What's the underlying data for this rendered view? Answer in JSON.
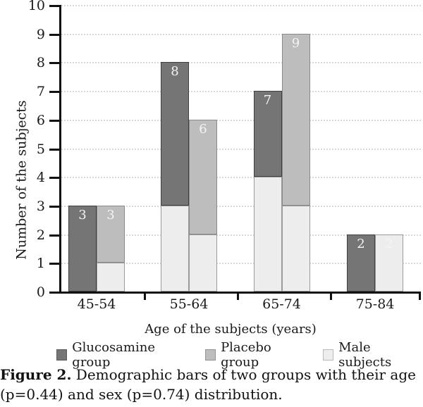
{
  "caption": {
    "prefix": "Figure 2.",
    "line1": " Demographic bars of two groups with their age",
    "line2": "(p=0.44) and sex (p=0.74) distribution."
  },
  "chart_data": {
    "type": "bar",
    "subtype": "grouped-with-stacked-male-overlay",
    "title": "",
    "xlabel": "Age of the subjects (years)",
    "ylabel": "Number of the subjects",
    "ylim": [
      0,
      10
    ],
    "yticks": [
      0,
      1,
      2,
      3,
      4,
      5,
      6,
      7,
      8,
      9,
      10
    ],
    "grid": "horizontal-dotted",
    "legend_position": "bottom",
    "categories": [
      "45-54",
      "55-64",
      "65-74",
      "75-84"
    ],
    "series": [
      {
        "name": "Glucosamine group",
        "color": "#757575",
        "border_color": "#3f3f3f",
        "totals": [
          3,
          8,
          7,
          2
        ],
        "male_subjects": [
          0,
          3,
          4,
          0
        ],
        "bar_labels": [
          "3",
          "8",
          "7",
          "2"
        ]
      },
      {
        "name": "Placebo group",
        "color": "#bdbdbd",
        "border_color": "#8a8a8a",
        "totals": [
          3,
          6,
          9,
          2
        ],
        "male_subjects": [
          1,
          2,
          3,
          2
        ],
        "bar_labels": [
          "3",
          "6",
          "9",
          "2"
        ]
      }
    ],
    "male_overlay_color": "#ededed",
    "male_overlay_border": "#9a9a9a",
    "bar_label_color": "#f4f4f4",
    "legend": [
      {
        "label": "Glucosamine group",
        "color": "#757575"
      },
      {
        "label": "Placebo group",
        "color": "#bdbdbd"
      },
      {
        "label": "Male subjects",
        "color": "#ededed"
      }
    ],
    "colors": {
      "axis": "#111111",
      "grid": "#d8d8d8",
      "text": "#1a1a1a"
    }
  }
}
